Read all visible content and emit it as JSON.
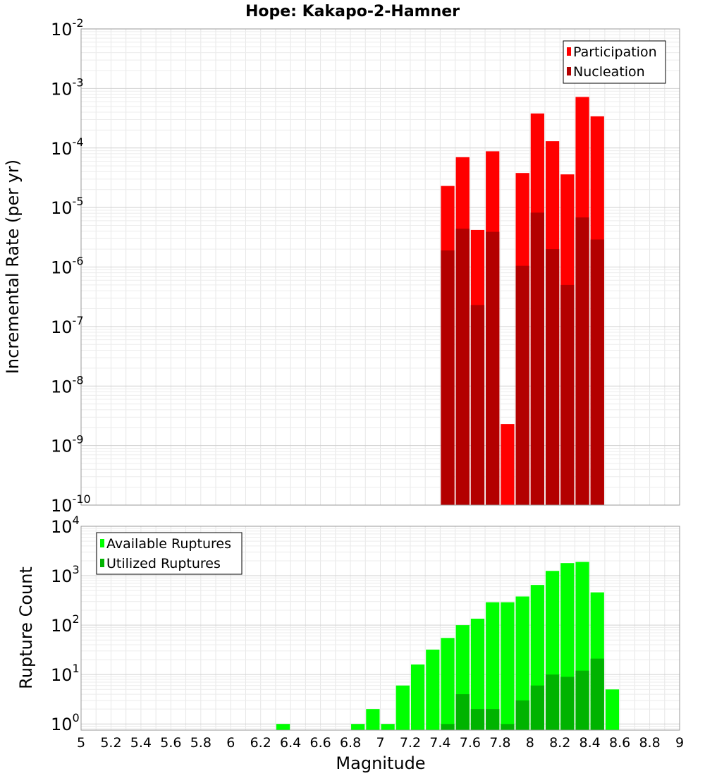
{
  "chart_data": [
    {
      "type": "bar",
      "title": "Hope: Kakapo-2-Hamner",
      "ylabel": "Incremental Rate (per yr)",
      "y_scale": "log",
      "ylim": [
        1e-10,
        0.01
      ],
      "xlim": [
        5,
        9
      ],
      "bin_width": 0.1,
      "grid": true,
      "legend_position": "top-right",
      "y_ticks": [
        {
          "base": "10",
          "exp": "-10"
        },
        {
          "base": "10",
          "exp": "-9"
        },
        {
          "base": "10",
          "exp": "-8"
        },
        {
          "base": "10",
          "exp": "-7"
        },
        {
          "base": "10",
          "exp": "-6"
        },
        {
          "base": "10",
          "exp": "-5"
        },
        {
          "base": "10",
          "exp": "-4"
        },
        {
          "base": "10",
          "exp": "-3"
        },
        {
          "base": "10",
          "exp": "-2"
        }
      ],
      "series": [
        {
          "name": "Participation",
          "color": "#ff0000",
          "x": [
            7.45,
            7.55,
            7.65,
            7.75,
            7.85,
            7.95,
            8.05,
            8.15,
            8.25,
            8.35,
            8.45
          ],
          "values": [
            2.3e-05,
            7e-05,
            4.2e-06,
            8.8e-05,
            2.3e-09,
            3.8e-05,
            0.00038,
            0.00013,
            3.6e-05,
            0.00072,
            0.00034
          ]
        },
        {
          "name": "Nucleation",
          "color": "#b30000",
          "x": [
            7.45,
            7.55,
            7.65,
            7.75,
            7.95,
            8.05,
            8.15,
            8.25,
            8.35,
            8.45
          ],
          "values": [
            1.9e-06,
            4.4e-06,
            2.3e-07,
            3.9e-06,
            1.05e-06,
            8.2e-06,
            2e-06,
            5e-07,
            6.8e-06,
            2.9e-06
          ]
        }
      ]
    },
    {
      "type": "bar",
      "ylabel": "Rupture Count",
      "xlabel": "Magnitude",
      "y_scale": "log",
      "ylim": [
        0.75,
        10000
      ],
      "xlim": [
        5,
        9
      ],
      "bin_width": 0.1,
      "grid": true,
      "legend_position": "top-left",
      "x_ticks": [
        "5",
        "5.2",
        "5.4",
        "5.6",
        "5.8",
        "6",
        "6.2",
        "6.4",
        "6.6",
        "6.8",
        "7",
        "7.2",
        "7.4",
        "7.6",
        "7.8",
        "8",
        "8.2",
        "8.4",
        "8.6",
        "8.8",
        "9"
      ],
      "y_ticks": [
        {
          "base": "10",
          "exp": "0"
        },
        {
          "base": "10",
          "exp": "1"
        },
        {
          "base": "10",
          "exp": "2"
        },
        {
          "base": "10",
          "exp": "3"
        },
        {
          "base": "10",
          "exp": "4"
        }
      ],
      "series": [
        {
          "name": "Available Ruptures",
          "color": "#00ff00",
          "x": [
            6.35,
            6.85,
            6.95,
            7.05,
            7.15,
            7.25,
            7.35,
            7.45,
            7.55,
            7.65,
            7.75,
            7.85,
            7.95,
            8.05,
            8.15,
            8.25,
            8.35,
            8.45,
            8.55
          ],
          "values": [
            1,
            1,
            2,
            1,
            6,
            16,
            32,
            55,
            100,
            135,
            290,
            290,
            380,
            650,
            1250,
            1800,
            1900,
            460,
            5
          ]
        },
        {
          "name": "Utilized Ruptures",
          "color": "#00b300",
          "x": [
            7.45,
            7.55,
            7.65,
            7.75,
            7.85,
            7.95,
            8.05,
            8.15,
            8.25,
            8.35,
            8.45
          ],
          "values": [
            1,
            4,
            2,
            2,
            1,
            3,
            6,
            10,
            9,
            12,
            21
          ]
        }
      ]
    }
  ]
}
